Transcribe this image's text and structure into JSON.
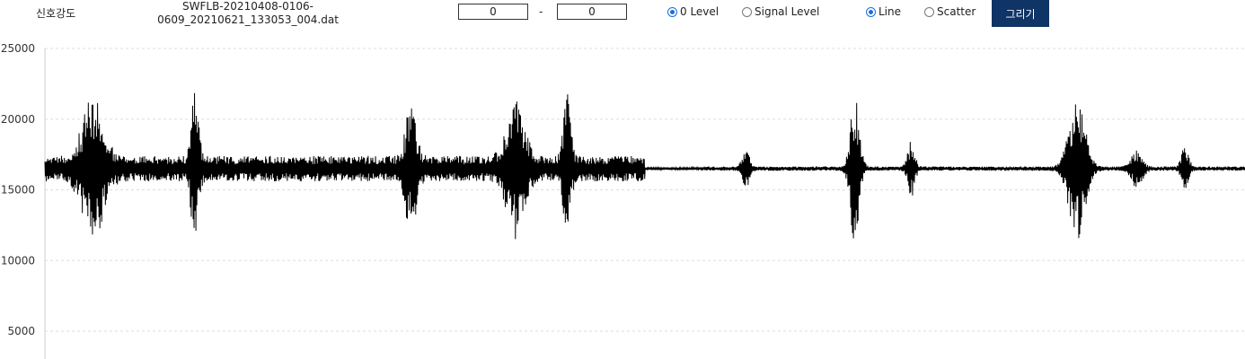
{
  "toolbar": {
    "signal_label": "신호강도",
    "filename_line1": "SWFLB-20210408-0106-",
    "filename_line2": "0609_20210621_133053_004.dat",
    "range_start": "0",
    "range_separator": "-",
    "range_end": "0",
    "level_options": [
      {
        "label": "0 Level",
        "checked": true
      },
      {
        "label": "Signal Level",
        "checked": false
      }
    ],
    "plot_options": [
      {
        "label": "Line",
        "checked": true
      },
      {
        "label": "Scatter",
        "checked": false
      }
    ],
    "draw_label": "그리기"
  },
  "chart_data": {
    "type": "line",
    "title": "",
    "xlabel": "",
    "ylabel": "",
    "ylim": [
      0,
      25000
    ],
    "y_ticks": [
      "25000",
      "20000",
      "15000",
      "10000",
      "5000"
    ],
    "y_tick_values": [
      25000,
      20000,
      15000,
      10000,
      5000
    ],
    "grid": true,
    "series_color": "#000000",
    "baseline": 16500,
    "quiet_start_fraction": 0.5,
    "base_amplitude_first_half": 900,
    "base_amplitude_second_half": 150,
    "bursts": [
      {
        "center": 0.04,
        "amplitude": 4200,
        "width": 0.012
      },
      {
        "center": 0.125,
        "amplitude": 4600,
        "width": 0.004
      },
      {
        "center": 0.305,
        "amplitude": 3800,
        "width": 0.006
      },
      {
        "center": 0.392,
        "amplitude": 4100,
        "width": 0.01
      },
      {
        "center": 0.435,
        "amplitude": 4700,
        "width": 0.004
      },
      {
        "center": 0.584,
        "amplitude": 1300,
        "width": 0.004
      },
      {
        "center": 0.675,
        "amplitude": 5400,
        "width": 0.005
      },
      {
        "center": 0.722,
        "amplitude": 1900,
        "width": 0.004
      },
      {
        "center": 0.86,
        "amplitude": 5100,
        "width": 0.009
      },
      {
        "center": 0.91,
        "amplitude": 1300,
        "width": 0.006
      },
      {
        "center": 0.95,
        "amplitude": 1500,
        "width": 0.004
      }
    ]
  }
}
